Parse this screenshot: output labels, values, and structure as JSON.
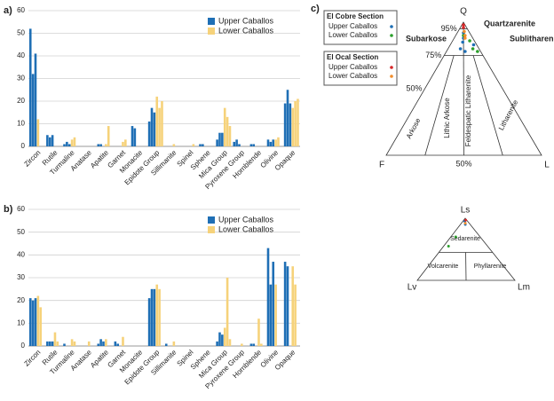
{
  "chart_data": [
    {
      "type": "bar",
      "panel_label": "a)",
      "categories": [
        "Zircon",
        "Rutile",
        "Turmaline",
        "Anatase",
        "Apatite",
        "Garnet",
        "Monacite",
        "Epidote Group",
        "Sillimanite",
        "Spinel",
        "Sphene",
        "Mica Group",
        "Pyroxene Group",
        "Hornblende",
        "Olivine",
        "Opaque"
      ],
      "series": [
        {
          "name": "Upper Caballos",
          "color": "#1f6fb5",
          "values": [
            [
              52,
              32,
              41
            ],
            [
              5,
              4,
              5
            ],
            [
              1,
              2,
              1
            ],
            [
              0,
              0,
              0
            ],
            [
              1,
              1,
              0
            ],
            [
              0,
              0,
              0
            ],
            [
              9,
              8,
              0
            ],
            [
              11,
              17,
              15
            ],
            [
              0,
              0,
              0
            ],
            [
              0,
              0,
              0
            ],
            [
              1,
              1,
              0
            ],
            [
              3,
              6,
              6
            ],
            [
              2,
              3,
              1
            ],
            [
              1,
              1,
              0
            ],
            [
              3,
              2,
              3
            ],
            [
              19,
              25,
              19
            ]
          ]
        },
        {
          "name": "Lower Caballos",
          "color": "#f6d27a",
          "values": [
            [
              12,
              0,
              0
            ],
            [
              0,
              0,
              0
            ],
            [
              3,
              4,
              0
            ],
            [
              0,
              0,
              0
            ],
            [
              1,
              9,
              0
            ],
            [
              2,
              3,
              0
            ],
            [
              0,
              0,
              0
            ],
            [
              22,
              17,
              20
            ],
            [
              1,
              0,
              0
            ],
            [
              0,
              1,
              0
            ],
            [
              0,
              0,
              0
            ],
            [
              17,
              13,
              9
            ],
            [
              0,
              0,
              0
            ],
            [
              0,
              0,
              0
            ],
            [
              3,
              4,
              0
            ],
            [
              17,
              20,
              21
            ]
          ]
        }
      ],
      "ylim": [
        0,
        60
      ],
      "yticks": [
        0,
        10,
        20,
        30,
        40,
        50,
        60
      ],
      "grid": true,
      "legend": "upper-right"
    },
    {
      "type": "bar",
      "panel_label": "b)",
      "categories": [
        "Zircon",
        "Rutile",
        "Turmaline",
        "Anatase",
        "Apatite",
        "Garnet",
        "Monacite",
        "Epidote Group",
        "Sillimanite",
        "Spinel",
        "Sphene",
        "Mica Group",
        "Pyroxene Group",
        "Hornblende",
        "Olivine",
        "Opaque"
      ],
      "series": [
        {
          "name": "Upper Caballos",
          "color": "#1f6fb5",
          "values": [
            [
              21,
              20,
              21
            ],
            [
              2,
              2,
              2
            ],
            [
              1,
              0,
              0
            ],
            [
              0,
              0,
              0
            ],
            [
              1,
              3,
              2
            ],
            [
              2,
              1,
              0
            ],
            [
              0,
              0,
              0
            ],
            [
              21,
              25,
              25
            ],
            [
              1,
              0,
              0
            ],
            [
              0,
              0,
              0
            ],
            [
              0,
              0,
              0
            ],
            [
              2,
              6,
              5
            ],
            [
              0,
              0,
              0
            ],
            [
              1,
              1,
              0
            ],
            [
              43,
              27,
              37
            ],
            [
              37,
              35,
              0
            ]
          ]
        },
        {
          "name": "Lower Caballos",
          "color": "#f6d27a",
          "values": [
            [
              22,
              17,
              0
            ],
            [
              6,
              2,
              0
            ],
            [
              3,
              2,
              0
            ],
            [
              2,
              0,
              0
            ],
            [
              3,
              0,
              0
            ],
            [
              4,
              0,
              0
            ],
            [
              0,
              0,
              0
            ],
            [
              27,
              25,
              0
            ],
            [
              2,
              0,
              0
            ],
            [
              0,
              0,
              0
            ],
            [
              0,
              0,
              0
            ],
            [
              8,
              30,
              3
            ],
            [
              1,
              0,
              0
            ],
            [
              12,
              1,
              0
            ],
            [
              27,
              0,
              0
            ],
            [
              35,
              27,
              0
            ]
          ]
        }
      ],
      "ylim": [
        0,
        60
      ],
      "yticks": [
        0,
        10,
        20,
        30,
        40,
        50,
        60
      ],
      "grid": true,
      "legend": "upper-right"
    },
    {
      "type": "ternary",
      "panel_label": "c)",
      "apex_labels": [
        "Q",
        "F",
        "L"
      ],
      "ticks": [
        {
          "value": 95,
          "label": "95%"
        },
        {
          "value": 75,
          "label": "75%"
        },
        {
          "value": 50,
          "label": "50%"
        }
      ],
      "base_ticks": [
        {
          "value": 50,
          "label": "50%"
        }
      ],
      "field_labels": [
        "Quartzarenite",
        "Subarkose",
        "Sublitharenite",
        "Arkose",
        "Lithic Arkose",
        "Feldespatic Litharenite",
        "Litharenite"
      ],
      "legend_groups": [
        {
          "title": "El Cobre Section",
          "series": [
            {
              "name": "Upper Caballos",
              "color": "#1f6fb5",
              "points": [
                [
                  92,
                  4,
                  4
                ],
                [
                  88,
                  6,
                  6
                ],
                [
                  85,
                  8,
                  7
                ],
                [
                  80,
                  12,
                  8
                ],
                [
                  78,
                  10,
                  12
                ],
                [
                  83,
                  2,
                  15
                ]
              ]
            },
            {
              "name": "Lower Caballos",
              "color": "#2ca02c",
              "points": [
                [
                  90,
                  5,
                  5
                ],
                [
                  86,
                  3,
                  11
                ],
                [
                  80,
                  4,
                  16
                ],
                [
                  78,
                  2,
                  20
                ]
              ]
            }
          ]
        },
        {
          "title": "El Ocal Section",
          "series": [
            {
              "name": "Upper Caballos",
              "color": "#d62728",
              "points": [
                [
                  98,
                  1,
                  1
                ],
                [
                  96,
                  2,
                  2
                ]
              ]
            },
            {
              "name": "Lower Caballos",
              "color": "#f28e2b",
              "points": [
                [
                  93,
                  3,
                  4
                ],
                [
                  90,
                  4,
                  6
                ],
                [
                  88,
                  5,
                  7
                ]
              ]
            }
          ]
        }
      ]
    },
    {
      "type": "ternary2",
      "apex_labels": [
        "Ls",
        "Lv",
        "Lm"
      ],
      "field_labels": [
        "Sedarenite",
        "Volcarenite",
        "Phyllarenite"
      ],
      "series": [
        {
          "color": "#1f6fb5",
          "points": [
            [
              95,
              3,
              2
            ],
            [
              90,
              5,
              5
            ]
          ]
        },
        {
          "color": "#2ca02c",
          "points": [
            [
              70,
              25,
              5
            ],
            [
              55,
              40,
              5
            ]
          ]
        },
        {
          "color": "#d62728",
          "points": [
            [
              97,
              1,
              2
            ]
          ]
        },
        {
          "color": "#f28e2b",
          "points": [
            [
              92,
              4,
              4
            ]
          ]
        }
      ]
    }
  ]
}
